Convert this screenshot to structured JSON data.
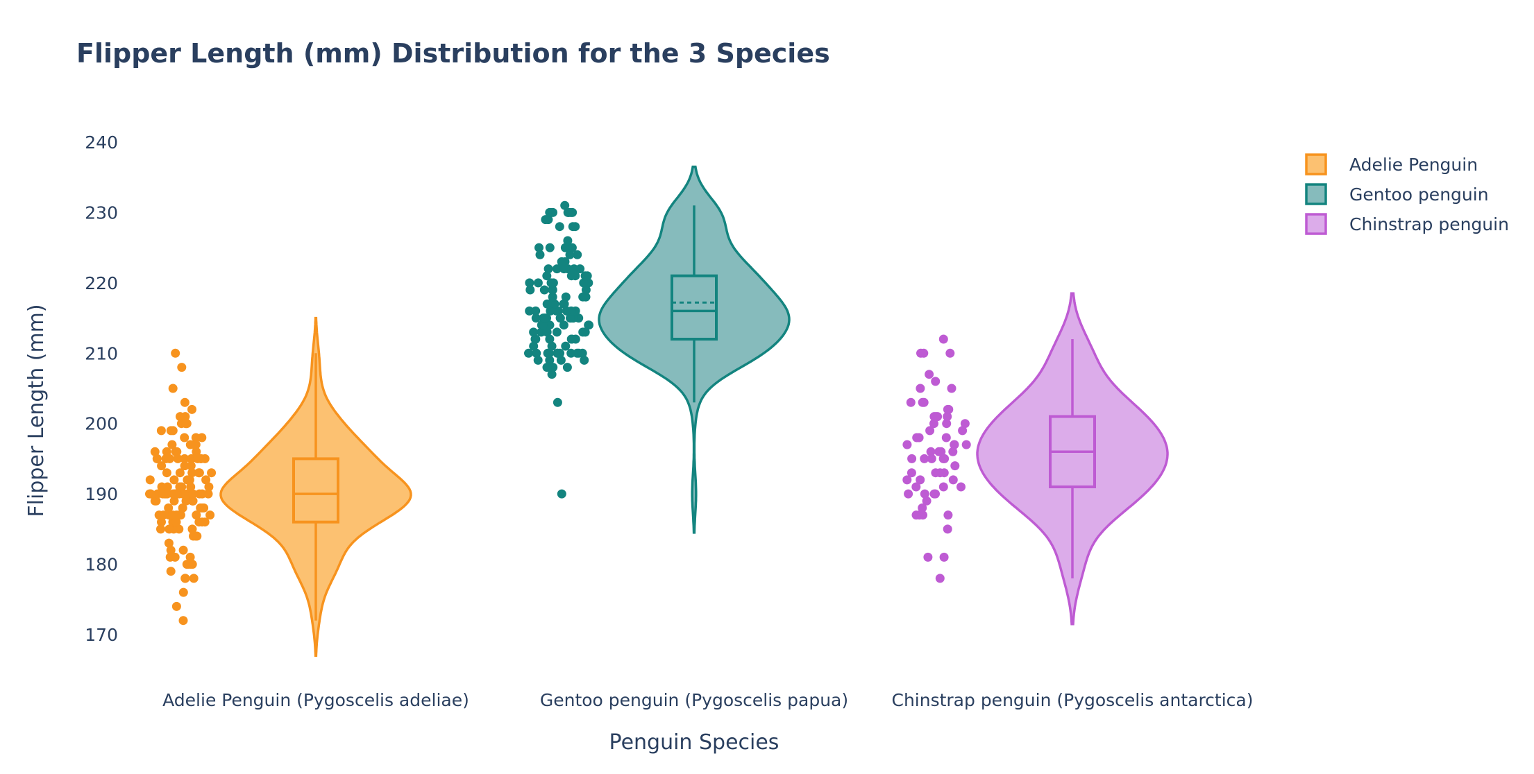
{
  "chart_data": {
    "type": "violin",
    "title": "Flipper Length (mm) Distribution for the 3 Species",
    "xlabel": "Penguin Species",
    "ylabel": "Flipper Length (mm)",
    "ylim": [
      165,
      243
    ],
    "yticks": [
      170,
      180,
      190,
      200,
      210,
      220,
      230,
      240
    ],
    "grid": false,
    "legend_position": "top-right",
    "categories": [
      "Adelie Penguin (Pygoscelis adeliae)",
      "Gentoo penguin (Pygoscelis papua)",
      "Chinstrap penguin (Pygoscelis antarctica)"
    ],
    "series": [
      {
        "name": "Adelie Penguin",
        "color": "#f7931e",
        "fill": "#fcc171",
        "stats": {
          "min": 172,
          "q1": 186,
          "median": 190,
          "q3": 195,
          "max": 210,
          "kde_min": 167,
          "kde_max": 215
        },
        "points": [
          172,
          174,
          176,
          178,
          178,
          178,
          179,
          180,
          180,
          180,
          180,
          181,
          181,
          181,
          182,
          182,
          183,
          184,
          184,
          184,
          185,
          185,
          185,
          185,
          185,
          186,
          186,
          186,
          186,
          186,
          186,
          186,
          187,
          187,
          187,
          187,
          187,
          187,
          187,
          187,
          187,
          188,
          188,
          188,
          188,
          188,
          189,
          189,
          189,
          189,
          189,
          189,
          189,
          190,
          190,
          190,
          190,
          190,
          190,
          190,
          190,
          190,
          190,
          190,
          190,
          190,
          190,
          190,
          190,
          190,
          190,
          190,
          190,
          190,
          190,
          190,
          190,
          191,
          191,
          191,
          191,
          191,
          191,
          191,
          192,
          192,
          192,
          192,
          192,
          192,
          193,
          193,
          193,
          193,
          193,
          193,
          194,
          194,
          194,
          195,
          195,
          195,
          195,
          195,
          195,
          195,
          195,
          195,
          195,
          195,
          196,
          196,
          196,
          196,
          196,
          197,
          197,
          197,
          197,
          198,
          198,
          198,
          199,
          199,
          199,
          200,
          200,
          200,
          200,
          201,
          201,
          202,
          203,
          205,
          208,
          210
        ]
      },
      {
        "name": "Gentoo penguin",
        "color": "#13847f",
        "fill": "#86bbbc",
        "stats": {
          "min": 203,
          "q1": 212,
          "median": 216,
          "q3": 221,
          "max": 231,
          "mean": 217.2,
          "kde_min": 184.5,
          "kde_max": 236.5
        },
        "points": [
          190,
          203,
          207,
          208,
          208,
          208,
          208,
          209,
          209,
          209,
          209,
          210,
          210,
          210,
          210,
          210,
          210,
          210,
          210,
          210,
          210,
          210,
          211,
          211,
          211,
          212,
          212,
          212,
          212,
          212,
          212,
          212,
          213,
          213,
          213,
          213,
          213,
          213,
          214,
          214,
          214,
          214,
          214,
          214,
          215,
          215,
          215,
          215,
          215,
          215,
          215,
          215,
          215,
          215,
          215,
          215,
          216,
          216,
          216,
          216,
          216,
          216,
          216,
          216,
          217,
          217,
          217,
          217,
          217,
          217,
          218,
          218,
          218,
          218,
          218,
          219,
          219,
          219,
          219,
          219,
          220,
          220,
          220,
          220,
          220,
          220,
          221,
          221,
          221,
          221,
          221,
          222,
          222,
          222,
          222,
          222,
          222,
          223,
          223,
          224,
          224,
          224,
          225,
          225,
          225,
          225,
          226,
          228,
          228,
          228,
          229,
          229,
          230,
          230,
          230,
          230,
          230,
          230,
          230,
          231
        ]
      },
      {
        "name": "Chinstrap penguin",
        "color": "#be5bd3",
        "fill": "#dcacea",
        "stats": {
          "min": 178,
          "q1": 191,
          "median": 196,
          "q3": 201,
          "max": 212,
          "kde_min": 171.5,
          "kde_max": 218.5
        },
        "points": [
          178,
          181,
          181,
          185,
          187,
          187,
          187,
          187,
          188,
          189,
          190,
          190,
          190,
          190,
          191,
          191,
          191,
          192,
          192,
          192,
          193,
          193,
          193,
          193,
          194,
          195,
          195,
          195,
          195,
          195,
          196,
          196,
          196,
          196,
          197,
          197,
          197,
          197,
          198,
          198,
          198,
          199,
          199,
          200,
          200,
          200,
          201,
          201,
          201,
          201,
          202,
          202,
          203,
          203,
          203,
          205,
          205,
          206,
          207,
          210,
          210,
          210,
          212
        ]
      }
    ]
  }
}
